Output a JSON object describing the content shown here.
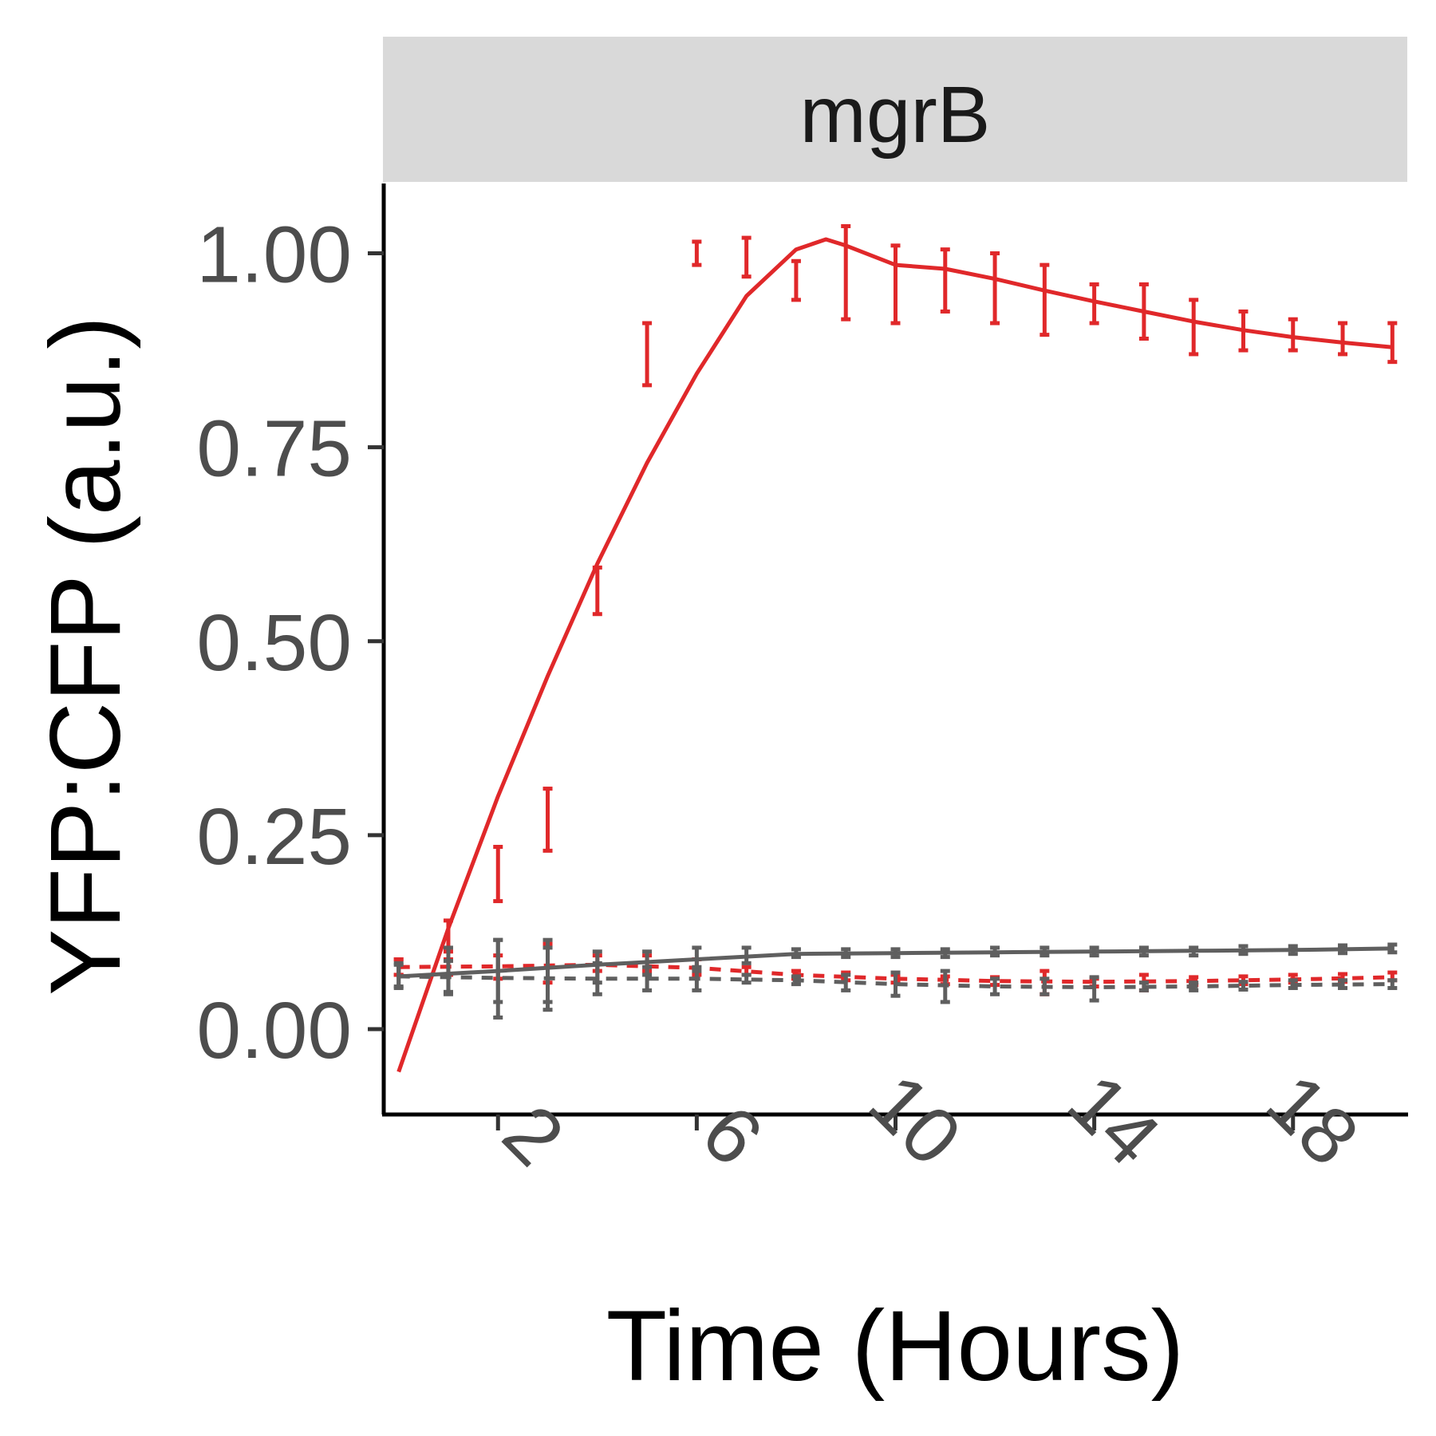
{
  "chart_data": {
    "type": "line",
    "facet_label": "mgrB",
    "xlabel": "Time (Hours)",
    "ylabel": "YFP:CFP (a.u.)",
    "x_ticks": [
      2,
      6,
      10,
      14,
      18
    ],
    "y_ticks": [
      "0.00",
      "0.25",
      "0.50",
      "0.75",
      "1.00"
    ],
    "xlim": [
      -0.3,
      20.3
    ],
    "ylim": [
      -0.11,
      1.09
    ],
    "grid": false,
    "legend": "none",
    "colors": {
      "red": "#e0282a",
      "gray": "#5f5f5f",
      "strip": "#d9d9d9"
    },
    "series": [
      {
        "color": "#e0282a",
        "style": "solid",
        "points": [
          {
            "x": 0,
            "y": 0.08,
            "err": 0.01
          },
          {
            "x": 1,
            "y": 0.12,
            "err": 0.02
          },
          {
            "x": 2,
            "y": 0.2,
            "err": 0.035
          },
          {
            "x": 3,
            "y": 0.27,
            "err": 0.04
          },
          {
            "x": 4,
            "y": 0.565,
            "err": 0.03
          },
          {
            "x": 5,
            "y": 0.87,
            "err": 0.04
          },
          {
            "x": 6,
            "y": 1.0,
            "err": 0.015
          },
          {
            "x": 7,
            "y": 0.995,
            "err": 0.025
          },
          {
            "x": 8,
            "y": 0.965,
            "err": 0.025
          },
          {
            "x": 9,
            "y": 0.975,
            "err": 0.06
          },
          {
            "x": 10,
            "y": 0.96,
            "err": 0.05
          },
          {
            "x": 11,
            "y": 0.965,
            "err": 0.04
          },
          {
            "x": 12,
            "y": 0.955,
            "err": 0.045
          },
          {
            "x": 13,
            "y": 0.94,
            "err": 0.045
          },
          {
            "x": 14,
            "y": 0.935,
            "err": 0.025
          },
          {
            "x": 15,
            "y": 0.925,
            "err": 0.035
          },
          {
            "x": 16,
            "y": 0.905,
            "err": 0.035
          },
          {
            "x": 17,
            "y": 0.9,
            "err": 0.025
          },
          {
            "x": 18,
            "y": 0.895,
            "err": 0.02
          },
          {
            "x": 19,
            "y": 0.89,
            "err": 0.02
          },
          {
            "x": 20,
            "y": 0.885,
            "err": 0.025
          }
        ],
        "fit": [
          [
            0,
            -0.055
          ],
          [
            1,
            0.13
          ],
          [
            2,
            0.3
          ],
          [
            3,
            0.455
          ],
          [
            4,
            0.6
          ],
          [
            5,
            0.73
          ],
          [
            6,
            0.845
          ],
          [
            7,
            0.945
          ],
          [
            8,
            1.005
          ],
          [
            8.6,
            1.018
          ],
          [
            9,
            1.01
          ],
          [
            10,
            0.985
          ],
          [
            11,
            0.98
          ],
          [
            12,
            0.967
          ],
          [
            13,
            0.952
          ],
          [
            14,
            0.938
          ],
          [
            15,
            0.925
          ],
          [
            16,
            0.912
          ],
          [
            17,
            0.901
          ],
          [
            18,
            0.892
          ],
          [
            19,
            0.885
          ],
          [
            20,
            0.879
          ]
        ]
      },
      {
        "color": "#e0282a",
        "style": "dotted",
        "points": [
          {
            "x": 0,
            "y": 0.08,
            "err": 0.01
          },
          {
            "x": 1,
            "y": 0.08,
            "err": 0.01
          },
          {
            "x": 2,
            "y": 0.08,
            "err": 0.015
          },
          {
            "x": 3,
            "y": 0.085,
            "err": 0.025
          },
          {
            "x": 4,
            "y": 0.085,
            "err": 0.01
          },
          {
            "x": 5,
            "y": 0.085,
            "err": 0.01
          },
          {
            "x": 6,
            "y": 0.08,
            "err": 0.01
          },
          {
            "x": 7,
            "y": 0.075,
            "err": 0.005
          },
          {
            "x": 8,
            "y": 0.07,
            "err": 0.005
          },
          {
            "x": 9,
            "y": 0.068,
            "err": 0.005
          },
          {
            "x": 10,
            "y": 0.065,
            "err": 0.005
          },
          {
            "x": 11,
            "y": 0.063,
            "err": 0.005
          },
          {
            "x": 12,
            "y": 0.062,
            "err": 0.005
          },
          {
            "x": 13,
            "y": 0.06,
            "err": 0.015
          },
          {
            "x": 14,
            "y": 0.06,
            "err": 0.005
          },
          {
            "x": 15,
            "y": 0.06,
            "err": 0.01
          },
          {
            "x": 16,
            "y": 0.062,
            "err": 0.005
          },
          {
            "x": 17,
            "y": 0.063,
            "err": 0.005
          },
          {
            "x": 18,
            "y": 0.065,
            "err": 0.005
          },
          {
            "x": 19,
            "y": 0.066,
            "err": 0.005
          },
          {
            "x": 20,
            "y": 0.068,
            "err": 0.005
          }
        ],
        "fit": [
          [
            0,
            0.08
          ],
          [
            2,
            0.081
          ],
          [
            4,
            0.083
          ],
          [
            6,
            0.079
          ],
          [
            8,
            0.07
          ],
          [
            10,
            0.065
          ],
          [
            12,
            0.062
          ],
          [
            14,
            0.061
          ],
          [
            16,
            0.062
          ],
          [
            18,
            0.064
          ],
          [
            20,
            0.067
          ]
        ]
      },
      {
        "color": "#5f5f5f",
        "style": "solid",
        "points": [
          {
            "x": 0,
            "y": 0.07,
            "err": 0.015
          },
          {
            "x": 1,
            "y": 0.075,
            "err": 0.03
          },
          {
            "x": 2,
            "y": 0.075,
            "err": 0.04
          },
          {
            "x": 3,
            "y": 0.075,
            "err": 0.04
          },
          {
            "x": 4,
            "y": 0.08,
            "err": 0.02
          },
          {
            "x": 5,
            "y": 0.085,
            "err": 0.015
          },
          {
            "x": 6,
            "y": 0.09,
            "err": 0.015
          },
          {
            "x": 7,
            "y": 0.095,
            "err": 0.01
          },
          {
            "x": 8,
            "y": 0.098,
            "err": 0.005
          },
          {
            "x": 9,
            "y": 0.098,
            "err": 0.005
          },
          {
            "x": 10,
            "y": 0.098,
            "err": 0.005
          },
          {
            "x": 11,
            "y": 0.098,
            "err": 0.005
          },
          {
            "x": 12,
            "y": 0.1,
            "err": 0.005
          },
          {
            "x": 13,
            "y": 0.1,
            "err": 0.005
          },
          {
            "x": 14,
            "y": 0.1,
            "err": 0.005
          },
          {
            "x": 15,
            "y": 0.1,
            "err": 0.005
          },
          {
            "x": 16,
            "y": 0.1,
            "err": 0.005
          },
          {
            "x": 17,
            "y": 0.102,
            "err": 0.005
          },
          {
            "x": 18,
            "y": 0.102,
            "err": 0.005
          },
          {
            "x": 19,
            "y": 0.103,
            "err": 0.005
          },
          {
            "x": 20,
            "y": 0.104,
            "err": 0.005
          }
        ],
        "fit": [
          [
            0,
            0.068
          ],
          [
            2,
            0.075
          ],
          [
            4,
            0.083
          ],
          [
            6,
            0.09
          ],
          [
            8,
            0.097
          ],
          [
            10,
            0.098
          ],
          [
            12,
            0.099
          ],
          [
            14,
            0.1
          ],
          [
            16,
            0.101
          ],
          [
            18,
            0.102
          ],
          [
            20,
            0.104
          ]
        ]
      },
      {
        "color": "#5f5f5f",
        "style": "dotted",
        "points": [
          {
            "x": 0,
            "y": 0.068,
            "err": 0.015
          },
          {
            "x": 1,
            "y": 0.068,
            "err": 0.02
          },
          {
            "x": 2,
            "y": 0.065,
            "err": 0.05
          },
          {
            "x": 3,
            "y": 0.065,
            "err": 0.04
          },
          {
            "x": 4,
            "y": 0.065,
            "err": 0.02
          },
          {
            "x": 5,
            "y": 0.065,
            "err": 0.015
          },
          {
            "x": 6,
            "y": 0.065,
            "err": 0.015
          },
          {
            "x": 7,
            "y": 0.065,
            "err": 0.005
          },
          {
            "x": 8,
            "y": 0.063,
            "err": 0.005
          },
          {
            "x": 9,
            "y": 0.06,
            "err": 0.01
          },
          {
            "x": 10,
            "y": 0.058,
            "err": 0.015
          },
          {
            "x": 11,
            "y": 0.055,
            "err": 0.02
          },
          {
            "x": 12,
            "y": 0.055,
            "err": 0.01
          },
          {
            "x": 13,
            "y": 0.055,
            "err": 0.01
          },
          {
            "x": 14,
            "y": 0.052,
            "err": 0.015
          },
          {
            "x": 15,
            "y": 0.055,
            "err": 0.005
          },
          {
            "x": 16,
            "y": 0.055,
            "err": 0.005
          },
          {
            "x": 17,
            "y": 0.056,
            "err": 0.005
          },
          {
            "x": 18,
            "y": 0.058,
            "err": 0.005
          },
          {
            "x": 19,
            "y": 0.058,
            "err": 0.005
          },
          {
            "x": 20,
            "y": 0.058,
            "err": 0.005
          }
        ],
        "fit": [
          [
            0,
            0.068
          ],
          [
            2,
            0.066
          ],
          [
            4,
            0.065
          ],
          [
            6,
            0.065
          ],
          [
            8,
            0.063
          ],
          [
            10,
            0.058
          ],
          [
            12,
            0.055
          ],
          [
            14,
            0.054
          ],
          [
            16,
            0.055
          ],
          [
            18,
            0.057
          ],
          [
            20,
            0.058
          ]
        ]
      }
    ]
  }
}
